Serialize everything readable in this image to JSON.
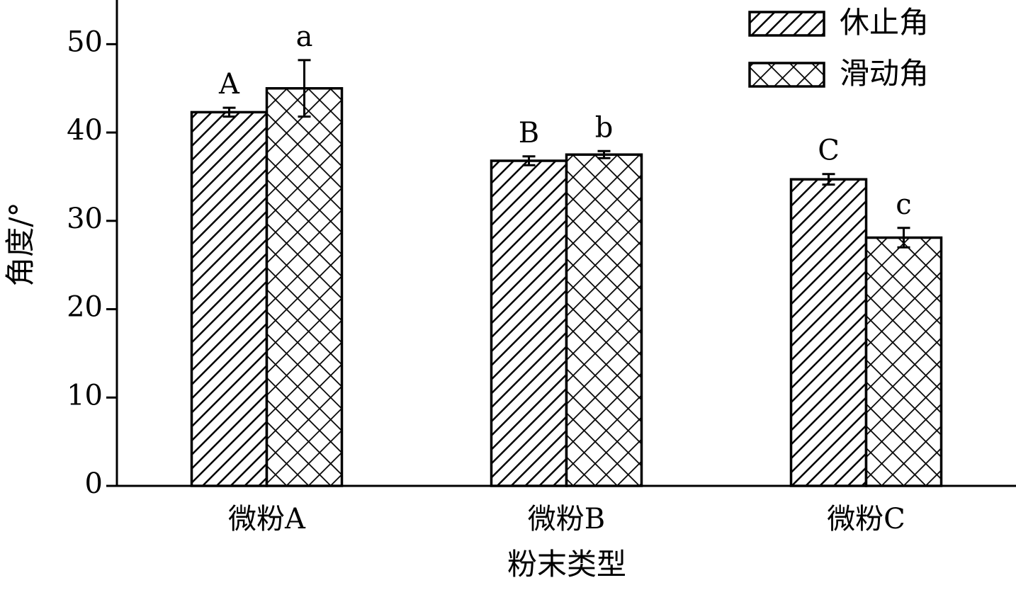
{
  "chart_data": {
    "type": "bar",
    "x_label": "粉末类型",
    "y_label": "角度/°",
    "categories": [
      "微粉A",
      "微粉B",
      "微粉C"
    ],
    "series": [
      {
        "name": "休止角",
        "color": "#000000",
        "pattern": "diagonal",
        "values": [
          42.3,
          36.8,
          34.7
        ],
        "errors": [
          0.5,
          0.5,
          0.6
        ],
        "significance": [
          "A",
          "B",
          "C"
        ]
      },
      {
        "name": "滑动角",
        "color": "#000000",
        "pattern": "cross",
        "values": [
          45.0,
          37.5,
          28.1
        ],
        "errors": [
          3.2,
          0.4,
          1.1
        ],
        "significance": [
          "a",
          "b",
          "c"
        ]
      }
    ],
    "ylim": [
      0,
      55
    ],
    "yticks": [
      0,
      10,
      20,
      30,
      40,
      50
    ],
    "legend": "upper right"
  }
}
